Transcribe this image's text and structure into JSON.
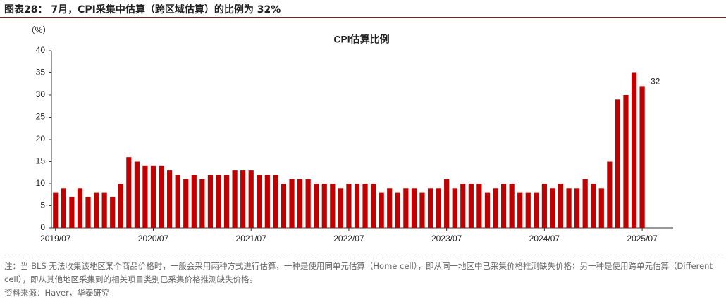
{
  "header": {
    "title": "图表28： 7月，CPI采集中估算（跨区域估算）的比例为 32%"
  },
  "chart_data": {
    "type": "bar",
    "title": "CPI估算比例",
    "y_unit": "（%）",
    "categories": [
      "2019/07",
      null,
      null,
      null,
      null,
      null,
      null,
      null,
      null,
      null,
      null,
      null,
      "2020/07",
      null,
      null,
      null,
      null,
      null,
      null,
      null,
      null,
      null,
      null,
      null,
      "2021/07",
      null,
      null,
      null,
      null,
      null,
      null,
      null,
      null,
      null,
      null,
      null,
      "2022/07",
      null,
      null,
      null,
      null,
      null,
      null,
      null,
      null,
      null,
      null,
      null,
      "2023/07",
      null,
      null,
      null,
      null,
      null,
      null,
      null,
      null,
      null,
      null,
      null,
      "2024/07",
      null,
      null,
      null,
      null,
      null,
      null,
      null,
      null,
      null,
      null,
      null,
      "2025/07"
    ],
    "series": [
      {
        "name": "CPI估算比例",
        "color": "#c00000",
        "values": [
          8,
          9,
          7,
          9,
          7,
          8,
          8,
          7,
          10,
          16,
          15,
          14,
          14,
          14,
          13,
          12,
          11,
          12,
          11,
          12,
          12,
          12,
          13,
          13,
          13,
          12,
          12,
          12,
          10,
          11,
          11,
          11,
          10,
          10,
          10,
          9,
          10,
          10,
          10,
          10,
          8,
          9,
          8,
          9,
          9,
          8,
          9,
          9,
          11,
          9,
          10,
          10,
          10,
          8,
          9,
          10,
          10,
          8,
          8,
          8,
          10,
          9,
          10,
          9,
          9,
          11,
          10,
          9,
          15,
          29,
          30,
          35,
          32
        ]
      }
    ],
    "labeled_points": [
      72
    ],
    "ylim": [
      0,
      40
    ],
    "yticks": [
      0,
      5,
      10,
      15,
      20,
      25,
      30,
      35,
      40
    ],
    "grid": false
  },
  "footer": {
    "note": "注：当 BLS 无法收集该地区某个商品价格时，一般会采用两种方式进行估算，一种是使用同单元估算（Home cell），即从同一地区中已采集价格推测缺失价格；另一种是使用跨单元估算（Different cell），即从其他地区采集到的相关项目类别已采集价格推测缺失价格。",
    "source": "资料来源：Haver，华泰研究"
  }
}
